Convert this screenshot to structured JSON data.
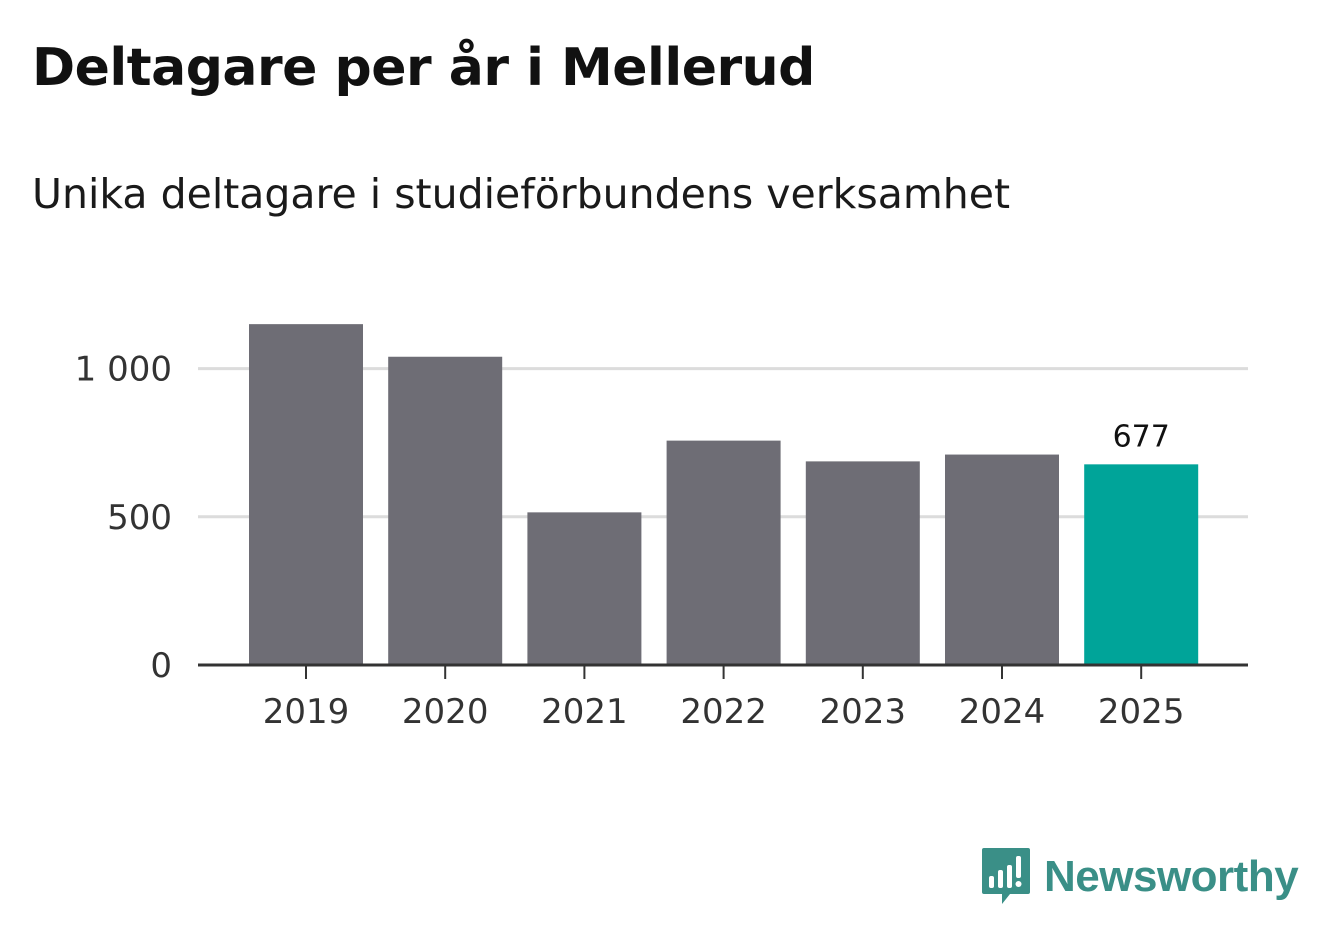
{
  "title": "Deltagare per år i Mellerud",
  "subtitle": "Unika deltagare i studieförbundens verksamhet",
  "brand": {
    "name": "Newsworthy",
    "color": "#3a8f87",
    "icon": "newsworthy-logo-icon"
  },
  "colors": {
    "bar": "#6e6d75",
    "highlight": "#00a499",
    "grid": "#dcdcdc",
    "axis": "#333333"
  },
  "chart_data": {
    "type": "bar",
    "title": "Deltagare per år i Mellerud",
    "subtitle": "Unika deltagare i studieförbundens verksamhet",
    "xlabel": "",
    "ylabel": "",
    "categories": [
      "2019",
      "2020",
      "2021",
      "2022",
      "2023",
      "2024",
      "2025"
    ],
    "values": [
      1150,
      1040,
      515,
      757,
      687,
      710,
      677
    ],
    "highlight_index": 6,
    "data_labels": [
      {
        "index": 6,
        "text": "677"
      }
    ],
    "ylim": [
      0,
      1150
    ],
    "yticks": [
      0,
      500,
      1000
    ],
    "ytick_labels": [
      "0",
      "500",
      "1 000"
    ],
    "grid": true
  }
}
